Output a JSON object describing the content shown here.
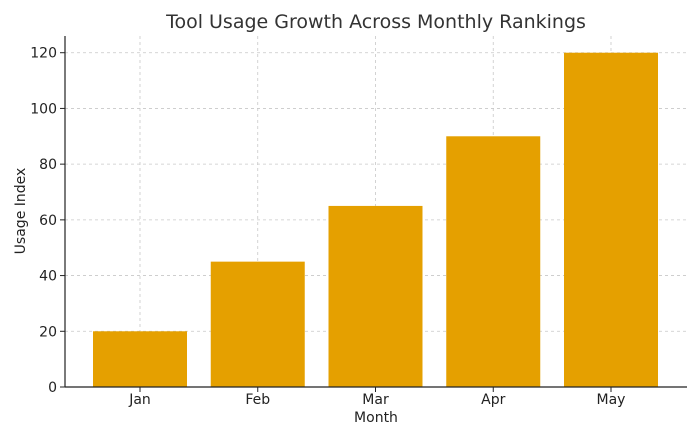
{
  "chart_data": {
    "type": "bar",
    "title": "Tool Usage Growth Across Monthly Rankings",
    "xlabel": "Month",
    "ylabel": "Usage Index",
    "categories": [
      "Jan",
      "Feb",
      "Mar",
      "Apr",
      "May"
    ],
    "values": [
      20,
      45,
      65,
      90,
      120
    ],
    "ylim": [
      0,
      126
    ],
    "yticks": [
      0,
      20,
      40,
      60,
      80,
      100,
      120
    ],
    "bar_color": "#E5A000",
    "grid": true
  }
}
